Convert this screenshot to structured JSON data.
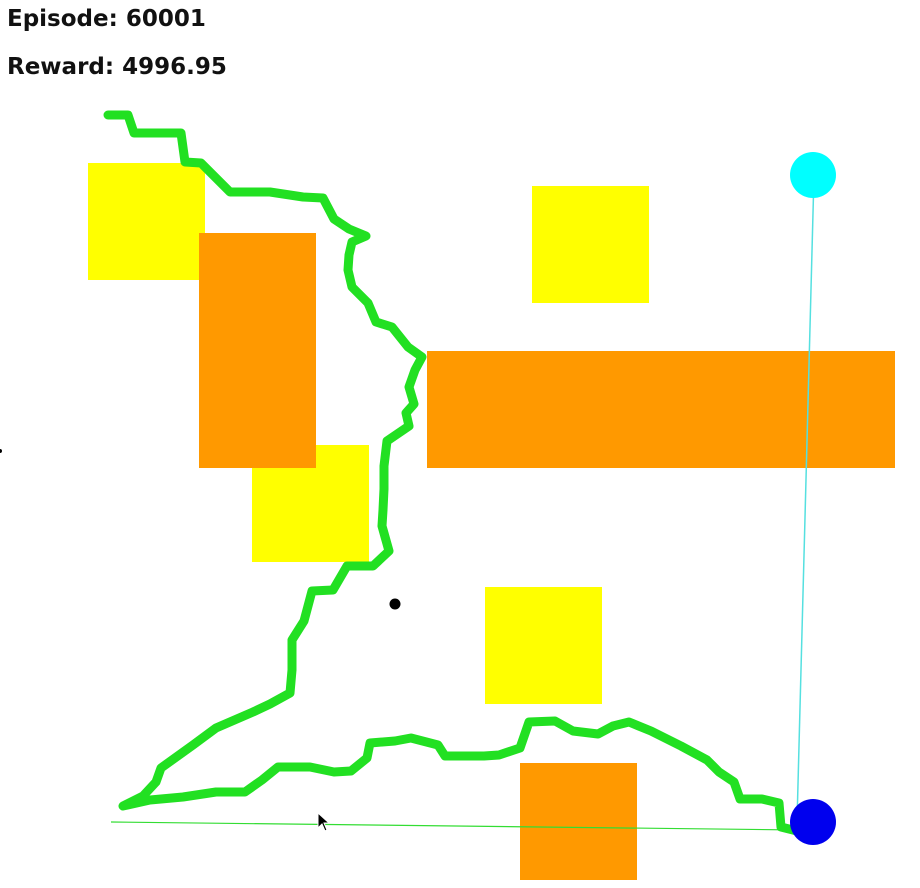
{
  "hud": {
    "episode": "Episode: 60001",
    "reward": "Reward: 4996.95"
  },
  "colors": {
    "background": "#ffffff",
    "small_obstacle": "#ffff00",
    "large_obstacle": "#ff9900",
    "trajectory": "#22e022",
    "agent": "#0000ee",
    "goal": "#00ffff",
    "goal_line": "#55e0e0",
    "heading_line": "#33dd33",
    "marker": "#000000"
  },
  "icons": {
    "cursor": "mouse-pointer-icon"
  }
}
